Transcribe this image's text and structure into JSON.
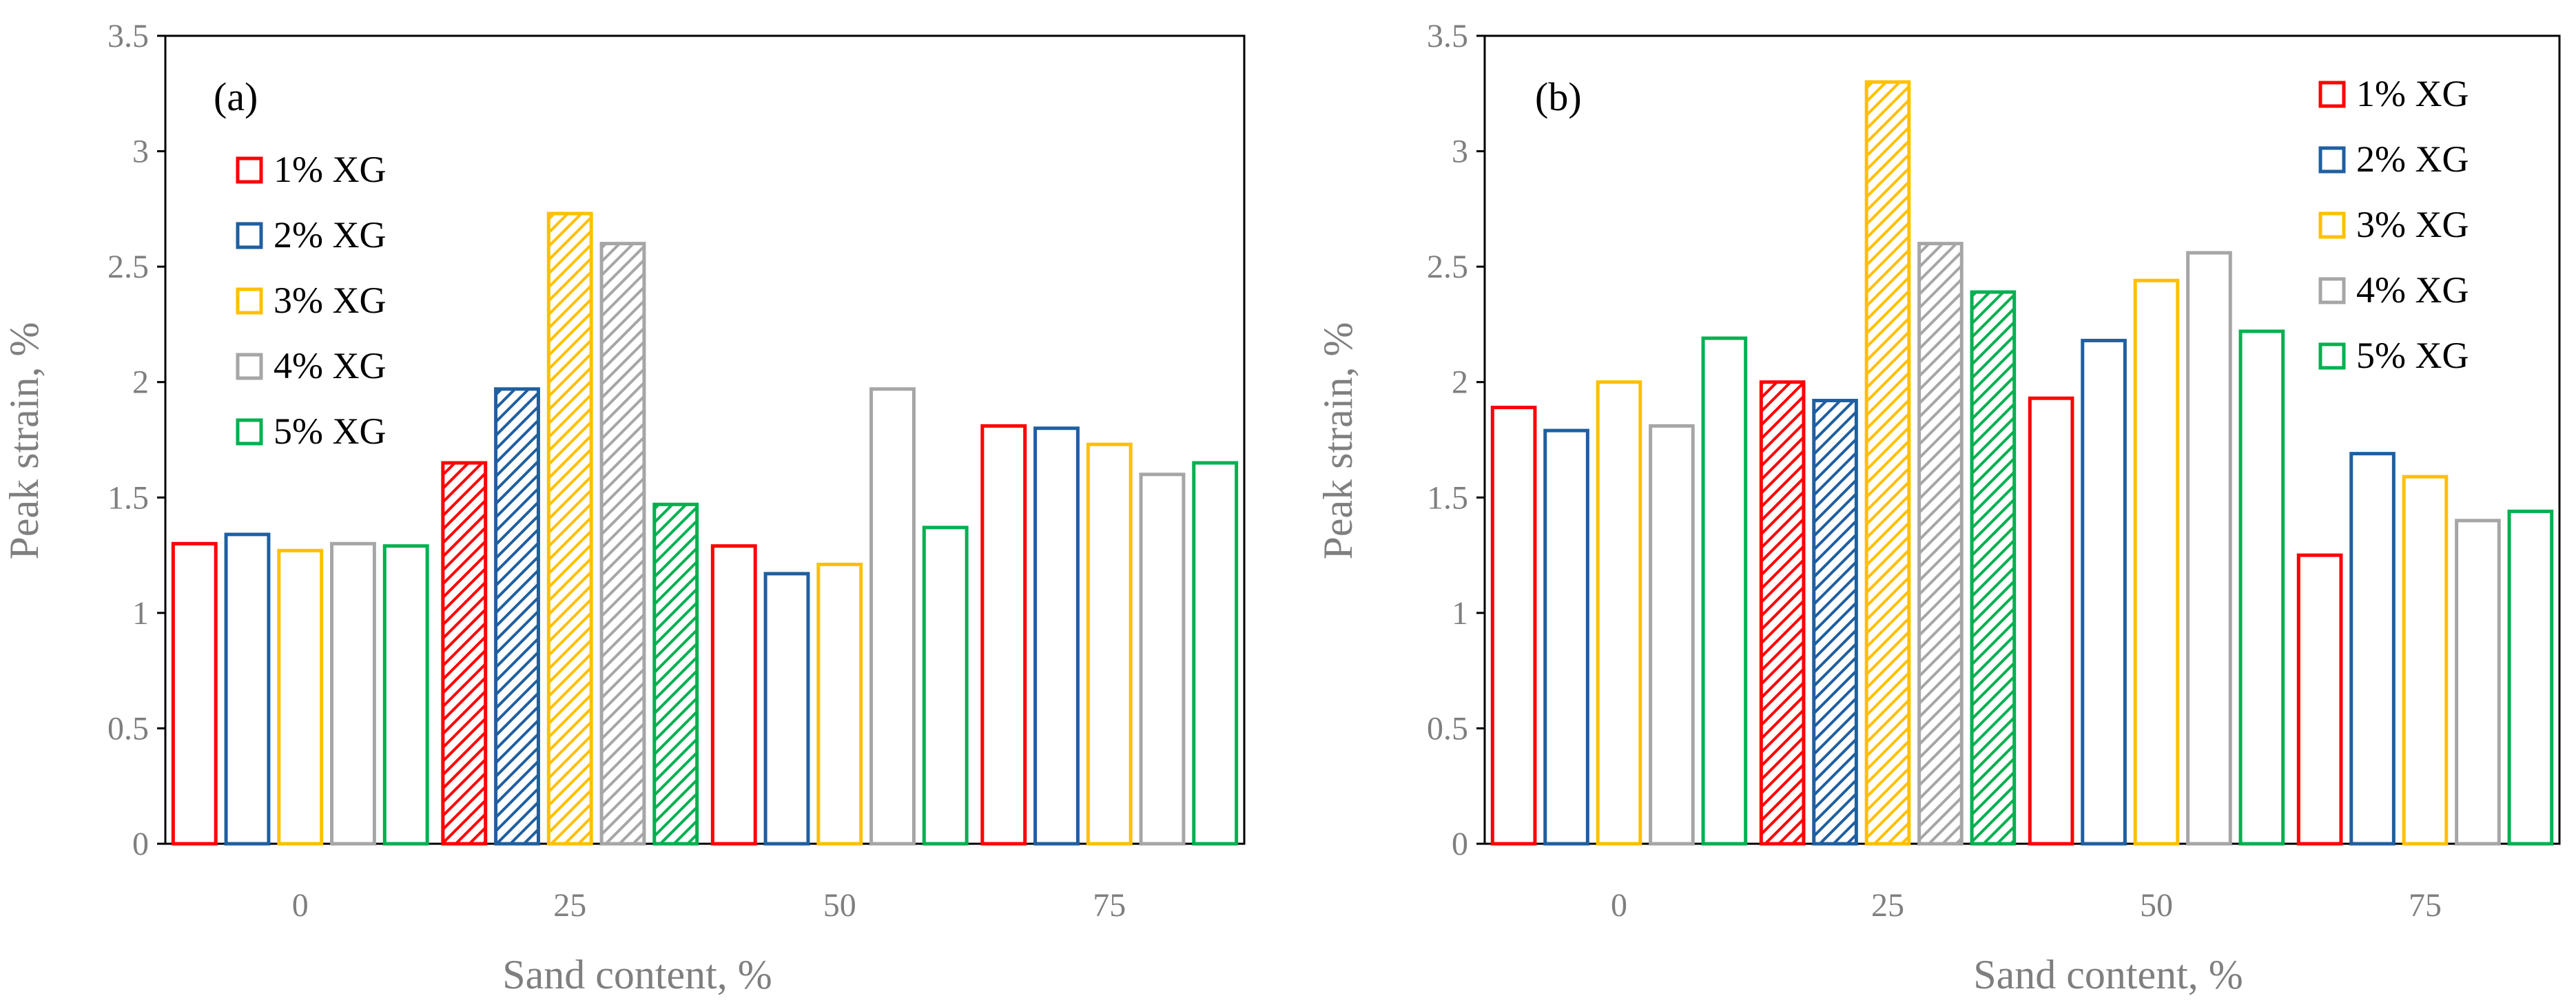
{
  "chart_data": [
    {
      "type": "bar",
      "panel_label": "(a)",
      "xlabel": "Sand content, %",
      "ylabel": "Peak strain, %",
      "categories": [
        "0",
        "25",
        "50",
        "75"
      ],
      "ylim": [
        0,
        3.5
      ],
      "yticks": [
        "0",
        "0.5",
        "1",
        "1.5",
        "2",
        "2.5",
        "3",
        "3.5"
      ],
      "legend_position": "left",
      "hatched_category": "25",
      "series": [
        {
          "name": "1% XG",
          "color": "#ff0000",
          "values": [
            1.3,
            1.65,
            1.29,
            1.81
          ]
        },
        {
          "name": "2% XG",
          "color": "#1f5fa0",
          "values": [
            1.34,
            1.97,
            1.17,
            1.8
          ]
        },
        {
          "name": "3% XG",
          "color": "#ffc000",
          "values": [
            1.27,
            2.73,
            1.21,
            1.73
          ]
        },
        {
          "name": "4% XG",
          "color": "#a6a6a6",
          "values": [
            1.3,
            2.6,
            1.97,
            1.6
          ]
        },
        {
          "name": "5% XG",
          "color": "#00b050",
          "values": [
            1.29,
            1.47,
            1.37,
            1.65
          ]
        }
      ]
    },
    {
      "type": "bar",
      "panel_label": "(b)",
      "xlabel": "Sand content, %",
      "ylabel": "Peak strain, %",
      "categories": [
        "0",
        "25",
        "50",
        "75"
      ],
      "ylim": [
        0,
        3.5
      ],
      "yticks": [
        "0",
        "0.5",
        "1",
        "1.5",
        "2",
        "2.5",
        "3",
        "3.5"
      ],
      "legend_position": "top-right",
      "hatched_category": "25",
      "series": [
        {
          "name": "1% XG",
          "color": "#ff0000",
          "values": [
            1.89,
            2.0,
            1.93,
            1.25
          ]
        },
        {
          "name": "2% XG",
          "color": "#1f5fa0",
          "values": [
            1.79,
            1.92,
            2.18,
            1.69
          ]
        },
        {
          "name": "3% XG",
          "color": "#ffc000",
          "values": [
            2.0,
            3.3,
            2.44,
            1.59
          ]
        },
        {
          "name": "4% XG",
          "color": "#a6a6a6",
          "values": [
            1.81,
            2.6,
            2.56,
            1.4
          ]
        },
        {
          "name": "5% XG",
          "color": "#00b050",
          "values": [
            2.19,
            2.39,
            2.22,
            1.44
          ]
        }
      ]
    }
  ]
}
